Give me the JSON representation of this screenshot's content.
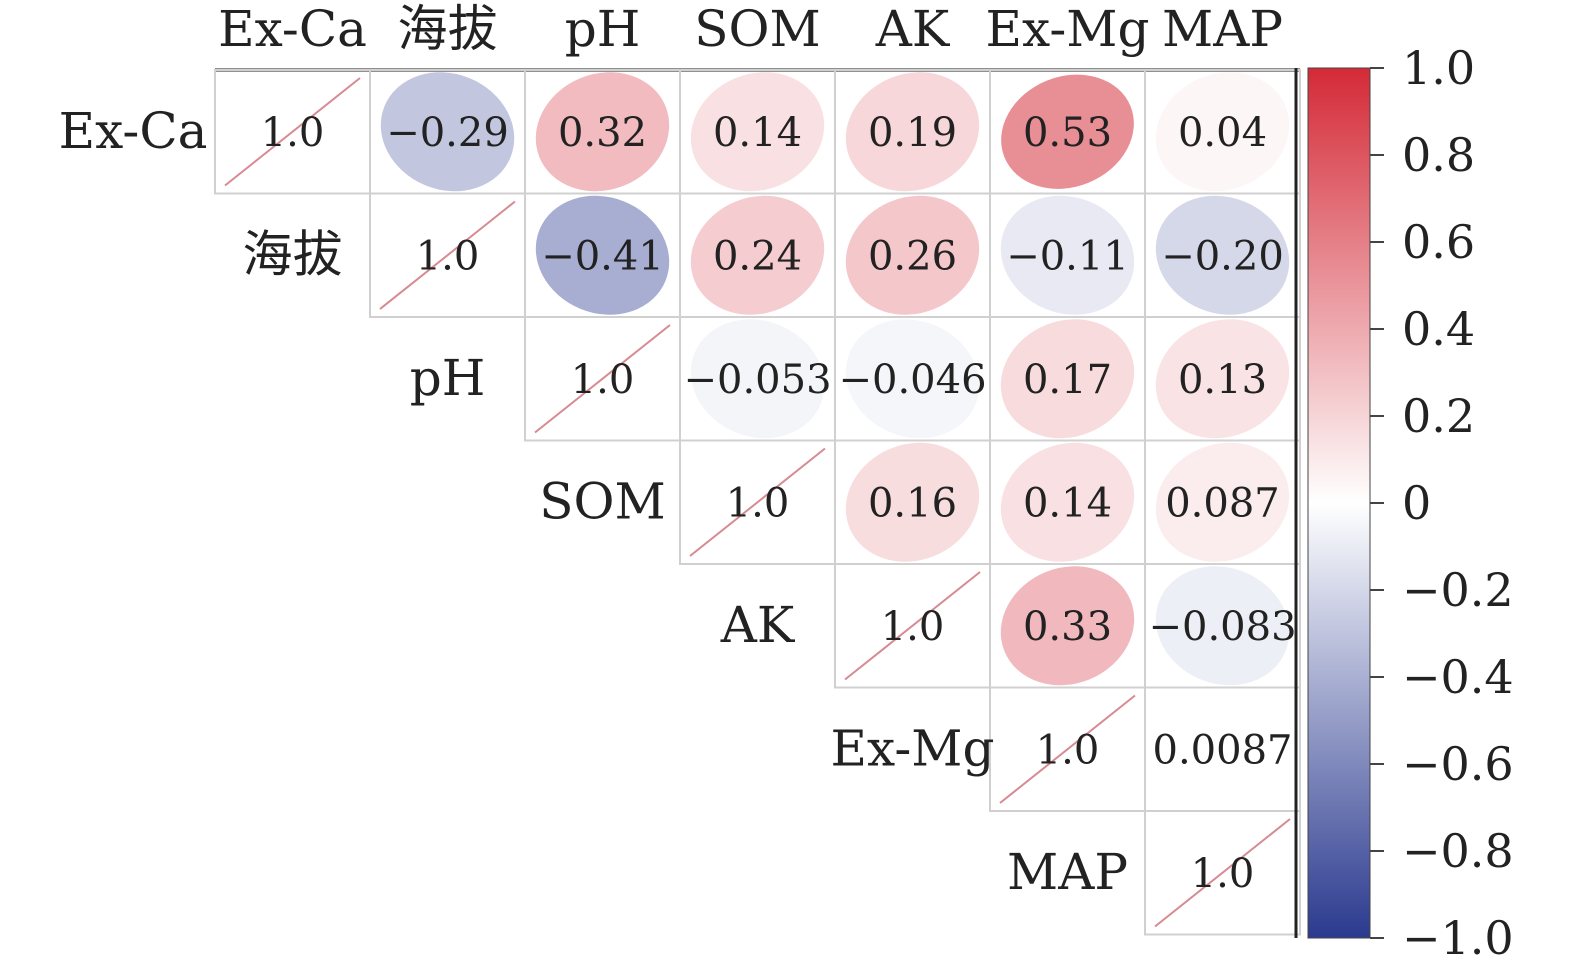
{
  "chart_data": {
    "type": "heatmap",
    "subtype": "correlation-ellipse-upper-triangle",
    "variables": [
      "Ex-Ca",
      "海拔",
      "pH",
      "SOM",
      "AK",
      "Ex-Mg",
      "MAP"
    ],
    "matrix": [
      [
        1.0,
        -0.29,
        0.32,
        0.14,
        0.19,
        0.53,
        0.04
      ],
      [
        null,
        1.0,
        -0.41,
        0.24,
        0.26,
        -0.11,
        -0.2
      ],
      [
        null,
        null,
        1.0,
        -0.053,
        -0.046,
        0.17,
        0.13
      ],
      [
        null,
        null,
        null,
        1.0,
        0.16,
        0.14,
        0.087
      ],
      [
        null,
        null,
        null,
        null,
        1.0,
        0.33,
        -0.083
      ],
      [
        null,
        null,
        null,
        null,
        null,
        1.0,
        0.0087
      ],
      [
        null,
        null,
        null,
        null,
        null,
        null,
        1.0
      ]
    ],
    "labels": [
      [
        "1.0",
        "−0.29",
        "0.32",
        "0.14",
        "0.19",
        "0.53",
        "0.04"
      ],
      [
        "",
        "1.0",
        "−0.41",
        "0.24",
        "0.26",
        "−0.11",
        "−0.20"
      ],
      [
        "",
        "",
        "1.0",
        "−0.053",
        "−0.046",
        "0.17",
        "0.13"
      ],
      [
        "",
        "",
        "",
        "1.0",
        "0.16",
        "0.14",
        "0.087"
      ],
      [
        "",
        "",
        "",
        "",
        "1.0",
        "0.33",
        "−0.083"
      ],
      [
        "",
        "",
        "",
        "",
        "",
        "1.0",
        "0.0087"
      ],
      [
        "",
        "",
        "",
        "",
        "",
        "",
        "1.0"
      ]
    ],
    "colorbar": {
      "range": [
        -1.0,
        1.0
      ],
      "ticks": [
        1.0,
        0.8,
        0.6,
        0.4,
        0.2,
        0,
        -0.2,
        -0.4,
        -0.6,
        -0.8,
        -1.0
      ],
      "tick_labels": [
        "1.0",
        "0.8",
        "0.6",
        "0.4",
        "0.2",
        "0",
        "−0.2",
        "−0.4",
        "−0.6",
        "−0.8",
        "−1.0"
      ],
      "colors": {
        "negative": "#2b3a8f",
        "zero": "#ffffff",
        "positive": "#d42a37"
      },
      "placement": "right"
    }
  }
}
